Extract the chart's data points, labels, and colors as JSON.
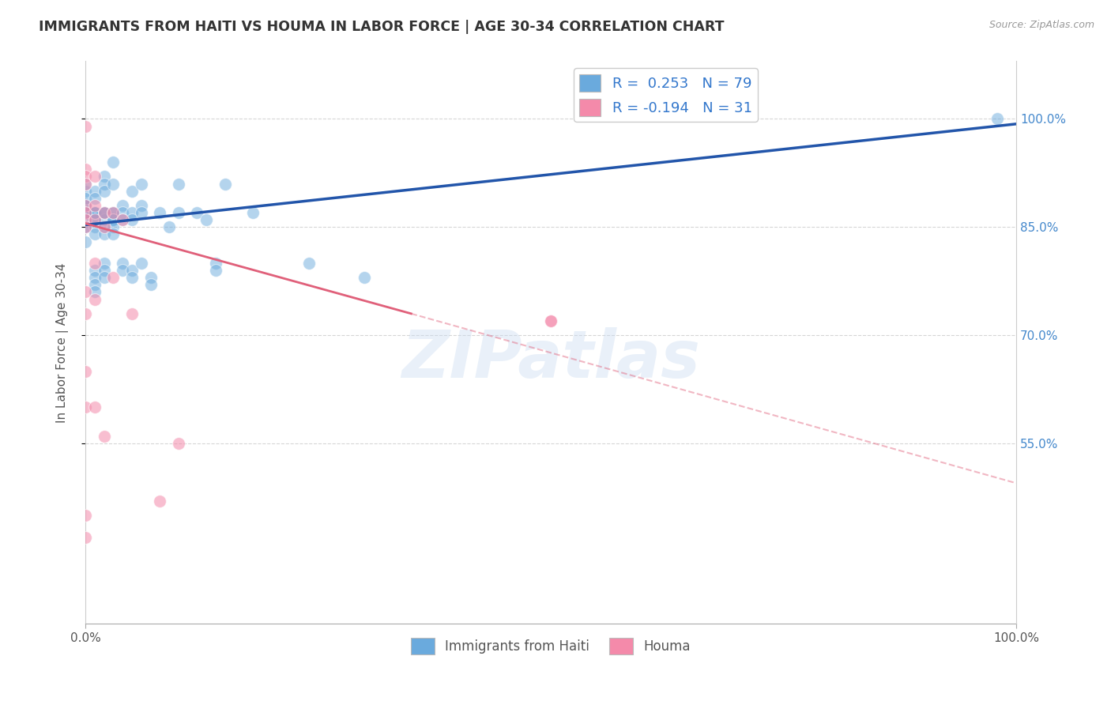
{
  "title": "IMMIGRANTS FROM HAITI VS HOUMA IN LABOR FORCE | AGE 30-34 CORRELATION CHART",
  "source": "Source: ZipAtlas.com",
  "ylabel": "In Labor Force | Age 30-34",
  "xlim": [
    0.0,
    1.0
  ],
  "ylim": [
    0.3,
    1.08
  ],
  "yticks": [
    0.55,
    0.7,
    0.85,
    1.0
  ],
  "ytick_labels": [
    "55.0%",
    "70.0%",
    "85.0%",
    "100.0%"
  ],
  "background_color": "#ffffff",
  "grid_color": "#cccccc",
  "watermark": "ZIPatlas",
  "legend_haiti": "R =  0.253   N = 79",
  "legend_houma": "R = -0.194   N = 31",
  "haiti_color": "#6aaadd",
  "houma_color": "#f48aaa",
  "haiti_line_color": "#2255aa",
  "houma_line_color": "#e0607a",
  "haiti_scatter": [
    [
      0.0,
      0.87
    ],
    [
      0.0,
      0.87
    ],
    [
      0.0,
      0.87
    ],
    [
      0.0,
      0.9
    ],
    [
      0.0,
      0.91
    ],
    [
      0.0,
      0.87
    ],
    [
      0.0,
      0.87
    ],
    [
      0.0,
      0.86
    ],
    [
      0.0,
      0.85
    ],
    [
      0.0,
      0.88
    ],
    [
      0.0,
      0.86
    ],
    [
      0.0,
      0.85
    ],
    [
      0.0,
      0.88
    ],
    [
      0.0,
      0.89
    ],
    [
      0.0,
      0.83
    ],
    [
      0.0,
      0.87
    ],
    [
      0.01,
      0.9
    ],
    [
      0.01,
      0.89
    ],
    [
      0.01,
      0.87
    ],
    [
      0.01,
      0.86
    ],
    [
      0.01,
      0.85
    ],
    [
      0.01,
      0.84
    ],
    [
      0.01,
      0.87
    ],
    [
      0.01,
      0.86
    ],
    [
      0.01,
      0.79
    ],
    [
      0.01,
      0.78
    ],
    [
      0.01,
      0.77
    ],
    [
      0.01,
      0.76
    ],
    [
      0.01,
      0.87
    ],
    [
      0.01,
      0.87
    ],
    [
      0.02,
      0.92
    ],
    [
      0.02,
      0.91
    ],
    [
      0.02,
      0.9
    ],
    [
      0.02,
      0.87
    ],
    [
      0.02,
      0.86
    ],
    [
      0.02,
      0.85
    ],
    [
      0.02,
      0.84
    ],
    [
      0.02,
      0.87
    ],
    [
      0.02,
      0.8
    ],
    [
      0.02,
      0.79
    ],
    [
      0.02,
      0.78
    ],
    [
      0.02,
      0.87
    ],
    [
      0.03,
      0.94
    ],
    [
      0.03,
      0.91
    ],
    [
      0.03,
      0.87
    ],
    [
      0.03,
      0.86
    ],
    [
      0.03,
      0.87
    ],
    [
      0.03,
      0.86
    ],
    [
      0.03,
      0.85
    ],
    [
      0.03,
      0.84
    ],
    [
      0.04,
      0.88
    ],
    [
      0.04,
      0.87
    ],
    [
      0.04,
      0.86
    ],
    [
      0.04,
      0.8
    ],
    [
      0.04,
      0.79
    ],
    [
      0.05,
      0.9
    ],
    [
      0.05,
      0.87
    ],
    [
      0.05,
      0.86
    ],
    [
      0.05,
      0.79
    ],
    [
      0.05,
      0.78
    ],
    [
      0.06,
      0.91
    ],
    [
      0.06,
      0.88
    ],
    [
      0.06,
      0.87
    ],
    [
      0.06,
      0.8
    ],
    [
      0.07,
      0.78
    ],
    [
      0.07,
      0.77
    ],
    [
      0.08,
      0.87
    ],
    [
      0.09,
      0.85
    ],
    [
      0.1,
      0.91
    ],
    [
      0.1,
      0.87
    ],
    [
      0.12,
      0.87
    ],
    [
      0.13,
      0.86
    ],
    [
      0.14,
      0.8
    ],
    [
      0.14,
      0.79
    ],
    [
      0.15,
      0.91
    ],
    [
      0.18,
      0.87
    ],
    [
      0.24,
      0.8
    ],
    [
      0.3,
      0.78
    ],
    [
      0.98,
      1.0
    ]
  ],
  "houma_scatter": [
    [
      0.0,
      0.99
    ],
    [
      0.0,
      0.93
    ],
    [
      0.0,
      0.92
    ],
    [
      0.0,
      0.91
    ],
    [
      0.0,
      0.88
    ],
    [
      0.0,
      0.87
    ],
    [
      0.0,
      0.86
    ],
    [
      0.0,
      0.85
    ],
    [
      0.0,
      0.76
    ],
    [
      0.0,
      0.73
    ],
    [
      0.0,
      0.65
    ],
    [
      0.0,
      0.6
    ],
    [
      0.01,
      0.92
    ],
    [
      0.01,
      0.88
    ],
    [
      0.01,
      0.86
    ],
    [
      0.01,
      0.8
    ],
    [
      0.01,
      0.75
    ],
    [
      0.01,
      0.6
    ],
    [
      0.02,
      0.87
    ],
    [
      0.02,
      0.85
    ],
    [
      0.03,
      0.87
    ],
    [
      0.03,
      0.78
    ],
    [
      0.04,
      0.86
    ],
    [
      0.05,
      0.73
    ],
    [
      0.02,
      0.56
    ],
    [
      0.0,
      0.45
    ],
    [
      0.0,
      0.42
    ],
    [
      0.5,
      0.72
    ],
    [
      0.5,
      0.72
    ],
    [
      0.1,
      0.55
    ],
    [
      0.08,
      0.47
    ]
  ],
  "blue_line": [
    [
      0.0,
      0.853
    ],
    [
      1.0,
      0.993
    ]
  ],
  "pink_line_solid": [
    [
      0.0,
      0.855
    ],
    [
      0.35,
      0.73
    ]
  ],
  "pink_line_dashed": [
    [
      0.35,
      0.73
    ],
    [
      1.0,
      0.495
    ]
  ]
}
